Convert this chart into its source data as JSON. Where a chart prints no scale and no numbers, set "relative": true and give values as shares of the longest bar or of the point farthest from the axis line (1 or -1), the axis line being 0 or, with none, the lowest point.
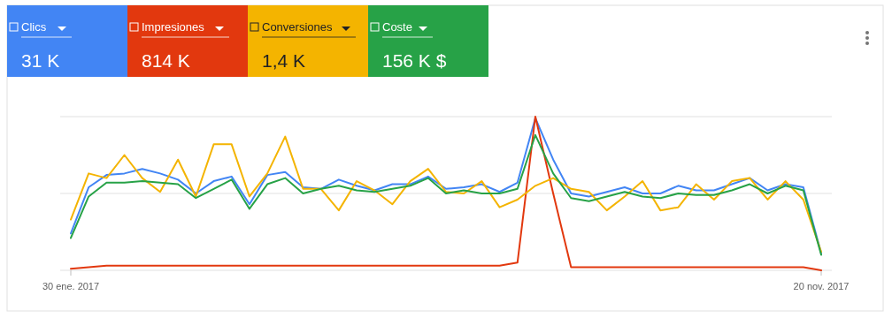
{
  "chart_data": {
    "type": "line",
    "relative": true,
    "ref_lines": [
      {
        "axis": "y",
        "value": 0.5,
        "color": "#e0e0e0"
      }
    ],
    "legend": "top left",
    "categories": [
      "30 ene. 2017",
      null,
      null,
      null,
      null,
      null,
      null,
      null,
      null,
      null,
      null,
      null,
      null,
      null,
      null,
      null,
      null,
      null,
      null,
      null,
      null,
      null,
      null,
      null,
      null,
      null,
      null,
      null,
      null,
      null,
      null,
      null,
      null,
      null,
      null,
      null,
      null,
      null,
      null,
      null,
      null,
      null,
      "20 nov. 2017"
    ],
    "series": [
      {
        "name": "Clics",
        "color": "#4285f4",
        "values": [
          0.24,
          0.54,
          0.62,
          0.63,
          0.66,
          0.63,
          0.59,
          0.5,
          0.58,
          0.61,
          0.43,
          0.62,
          0.64,
          0.54,
          0.53,
          0.59,
          0.55,
          0.52,
          0.56,
          0.56,
          0.61,
          0.53,
          0.54,
          0.56,
          0.51,
          0.57,
          0.99,
          0.72,
          0.5,
          0.48,
          0.51,
          0.54,
          0.5,
          0.5,
          0.55,
          0.52,
          0.52,
          0.56,
          0.6,
          0.52,
          0.56,
          0.54,
          0.11
        ]
      },
      {
        "name": "Impresiones",
        "color": "#e2380e",
        "values": [
          0.01,
          0.02,
          0.03,
          0.03,
          0.03,
          0.03,
          0.03,
          0.03,
          0.03,
          0.03,
          0.03,
          0.03,
          0.03,
          0.03,
          0.03,
          0.03,
          0.03,
          0.03,
          0.03,
          0.03,
          0.03,
          0.03,
          0.03,
          0.03,
          0.03,
          0.05,
          1,
          0.5,
          0.02,
          0.02,
          0.02,
          0.02,
          0.02,
          0.02,
          0.02,
          0.02,
          0.02,
          0.02,
          0.02,
          0.02,
          0.02,
          0.02,
          0.0
        ]
      },
      {
        "name": "Conversiones",
        "color": "#f4b400",
        "values": [
          0.33,
          0.63,
          0.6,
          0.75,
          0.6,
          0.51,
          0.72,
          0.48,
          0.82,
          0.82,
          0.48,
          0.63,
          0.87,
          0.53,
          0.53,
          0.39,
          0.58,
          0.52,
          0.43,
          0.58,
          0.66,
          0.51,
          0.5,
          0.58,
          0.41,
          0.46,
          0.55,
          0.6,
          0.53,
          0.51,
          0.39,
          0.48,
          0.58,
          0.39,
          0.41,
          0.56,
          0.46,
          0.58,
          0.6,
          0.46,
          0.58,
          0.46,
          0.12
        ]
      },
      {
        "name": "Coste",
        "color": "#27a247",
        "values": [
          0.21,
          0.48,
          0.57,
          0.57,
          0.58,
          0.57,
          0.56,
          0.47,
          0.53,
          0.59,
          0.4,
          0.56,
          0.6,
          0.5,
          0.53,
          0.55,
          0.52,
          0.51,
          0.53,
          0.55,
          0.6,
          0.5,
          0.52,
          0.5,
          0.5,
          0.53,
          0.88,
          0.63,
          0.47,
          0.45,
          0.48,
          0.51,
          0.48,
          0.47,
          0.5,
          0.49,
          0.49,
          0.52,
          0.56,
          0.5,
          0.55,
          0.52,
          0.1
        ]
      }
    ],
    "annotations": [
      "31 K",
      "814 K",
      "1,4 K",
      "156 K $"
    ]
  }
}
